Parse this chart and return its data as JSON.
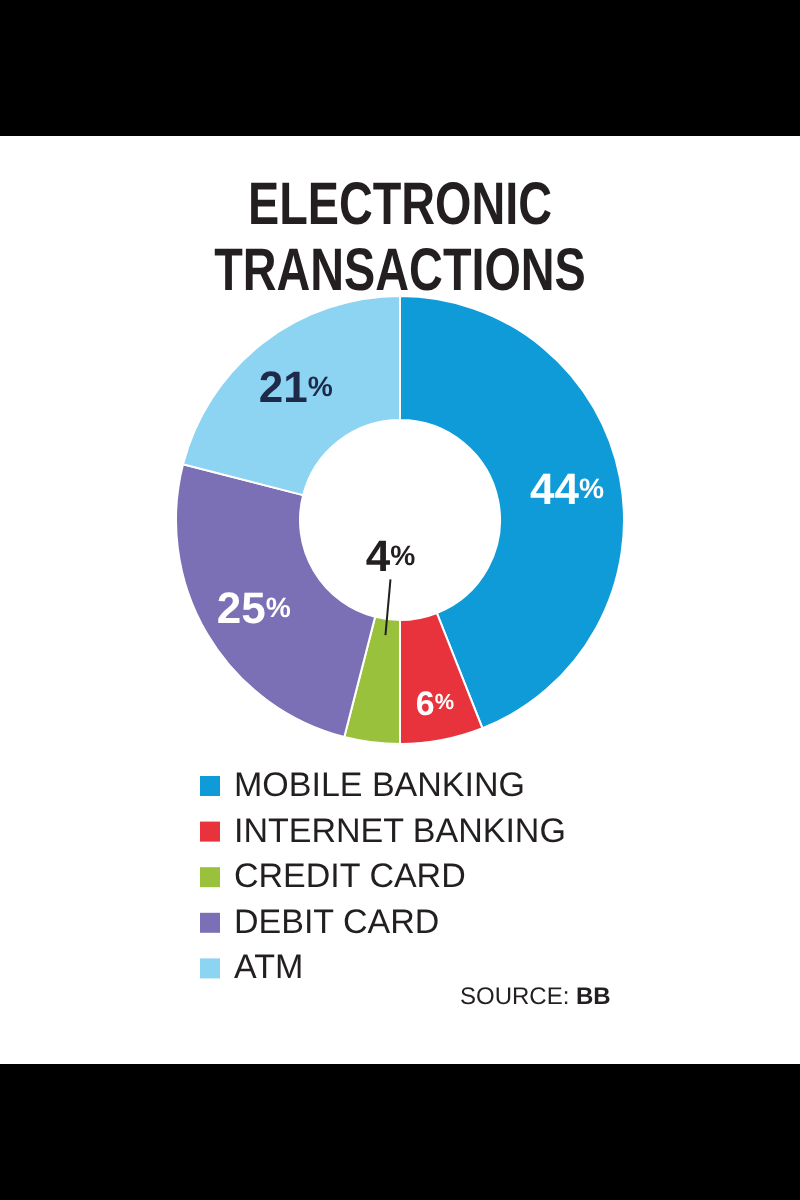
{
  "chart_data": {
    "type": "donut",
    "title": "ELECTRONIC TRANSACTIONS",
    "categories": [
      "MOBILE BANKING",
      "INTERNET BANKING",
      "CREDIT CARD",
      "DEBIT CARD",
      "ATM"
    ],
    "values": [
      44,
      6,
      4,
      25,
      21
    ],
    "colors": [
      "#0e9bd8",
      "#e8323c",
      "#9ac13c",
      "#7b6fb5",
      "#8dd3f2"
    ],
    "value_labels": [
      "44%",
      "6%",
      "4%",
      "25%",
      "21%"
    ],
    "legend": "bottom",
    "annotations": [
      "SOURCE: BB"
    ]
  }
}
